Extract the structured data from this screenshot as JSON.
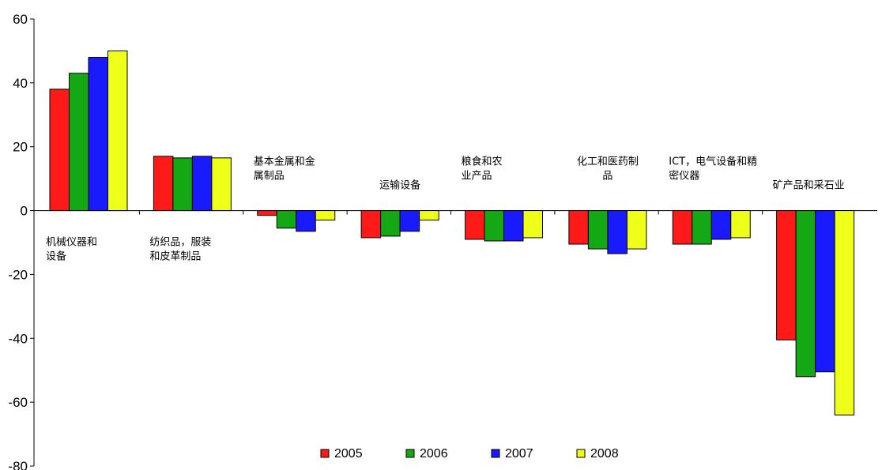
{
  "chart_data": {
    "type": "bar",
    "title": "",
    "xlabel": "",
    "ylabel": "",
    "ylim": [
      -80,
      60
    ],
    "yticks": [
      60,
      40,
      20,
      0,
      -20,
      -40,
      -60,
      -80
    ],
    "grid": false,
    "legend_placement": "bottom-center",
    "categories": [
      {
        "lines": [
          "机械仪器和",
          "设备"
        ],
        "label_position": "below-axis",
        "align": "left"
      },
      {
        "lines": [
          "纺织品，服装",
          "和皮革制品"
        ],
        "label_position": "below-axis",
        "align": "left"
      },
      {
        "lines": [
          "基本金属和金",
          "属制品"
        ],
        "label_position": "above-axis",
        "align": "left"
      },
      {
        "lines": [
          "运输设备"
        ],
        "label_position": "above-axis",
        "align": "center"
      },
      {
        "lines": [
          "粮食和农",
          "业产品"
        ],
        "label_position": "above-axis",
        "align": "left"
      },
      {
        "lines": [
          "化工和医药制",
          "品"
        ],
        "label_position": "above-axis",
        "align": "center"
      },
      {
        "lines": [
          "ICT，电气设备和精",
          "密仪器"
        ],
        "label_position": "above-axis",
        "align": "left"
      },
      {
        "lines": [
          "矿产品和采石业"
        ],
        "label_position": "above-axis",
        "align": "left"
      }
    ],
    "series": [
      {
        "name": "2005",
        "color": "#ff1a1a",
        "values": [
          38,
          17,
          -1.5,
          -8.5,
          -9,
          -10.5,
          -10.5,
          -40.5
        ]
      },
      {
        "name": "2006",
        "color": "#14a814",
        "values": [
          43,
          16.5,
          -5.5,
          -8,
          -9.5,
          -12,
          -10.5,
          -52
        ]
      },
      {
        "name": "2007",
        "color": "#1a1aff",
        "values": [
          48,
          17,
          -6.5,
          -6.5,
          -9.5,
          -13.5,
          -9,
          -50.5
        ]
      },
      {
        "name": "2008",
        "color": "#eeff1a",
        "values": [
          50,
          16.5,
          -3,
          -3,
          -8.5,
          -12,
          -8.5,
          -64
        ]
      }
    ]
  }
}
